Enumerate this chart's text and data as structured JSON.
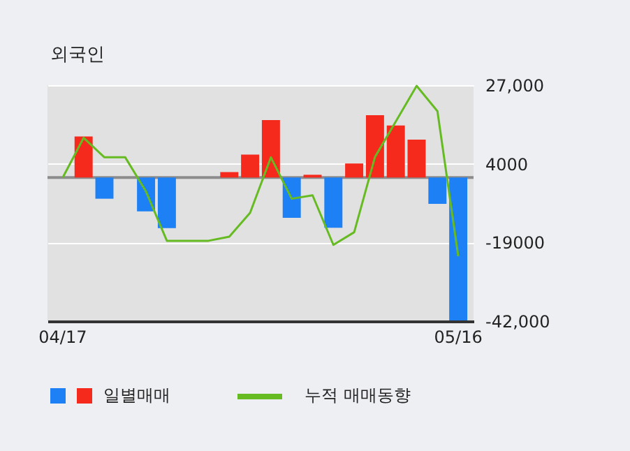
{
  "chart_data": {
    "type": "bar",
    "title": "외국인",
    "categories": [
      "04/17",
      null,
      null,
      null,
      null,
      null,
      null,
      null,
      null,
      null,
      null,
      null,
      null,
      null,
      null,
      null,
      null,
      null,
      null,
      "05/16"
    ],
    "series": [
      {
        "name": "일별매매",
        "values": [
          0,
          12000,
          -6200,
          0,
          -9900,
          -14800,
          0,
          0,
          1600,
          6700,
          16800,
          -11800,
          800,
          -14700,
          4100,
          18200,
          15200,
          11100,
          -7700,
          -41800
        ],
        "colors": [
          "#f5291c",
          "#f5291c",
          "#1d80f5",
          "#f5291c",
          "#1d80f5",
          "#1d80f5",
          "#f5291c",
          "#f5291c",
          "#f5291c",
          "#f5291c",
          "#f5291c",
          "#1d80f5",
          "#f5291c",
          "#1d80f5",
          "#f5291c",
          "#f5291c",
          "#f5291c",
          "#f5291c",
          "#1d80f5",
          "#1d80f5"
        ]
      },
      {
        "name": "누적 매매동향",
        "type": "line",
        "color": "#66bb22",
        "values": [
          0,
          11600,
          5900,
          5900,
          -4100,
          -18500,
          -18500,
          -18500,
          -17300,
          -10300,
          5900,
          -6200,
          -5200,
          -19700,
          -16000,
          6000,
          16400,
          26800,
          19400,
          -23000
        ]
      }
    ],
    "ylim": [
      -42000,
      27000
    ],
    "yticks": [
      {
        "value": 27000,
        "label": "27,000"
      },
      {
        "value": 4000,
        "label": "4000"
      },
      {
        "value": -19000,
        "label": "-19000"
      },
      {
        "value": -42000,
        "label": "-42,000"
      }
    ],
    "ref_lines": [
      {
        "axis": "y",
        "value": 0,
        "color": "#8c8c8c"
      }
    ],
    "grid": "y",
    "legend": "bottom"
  }
}
